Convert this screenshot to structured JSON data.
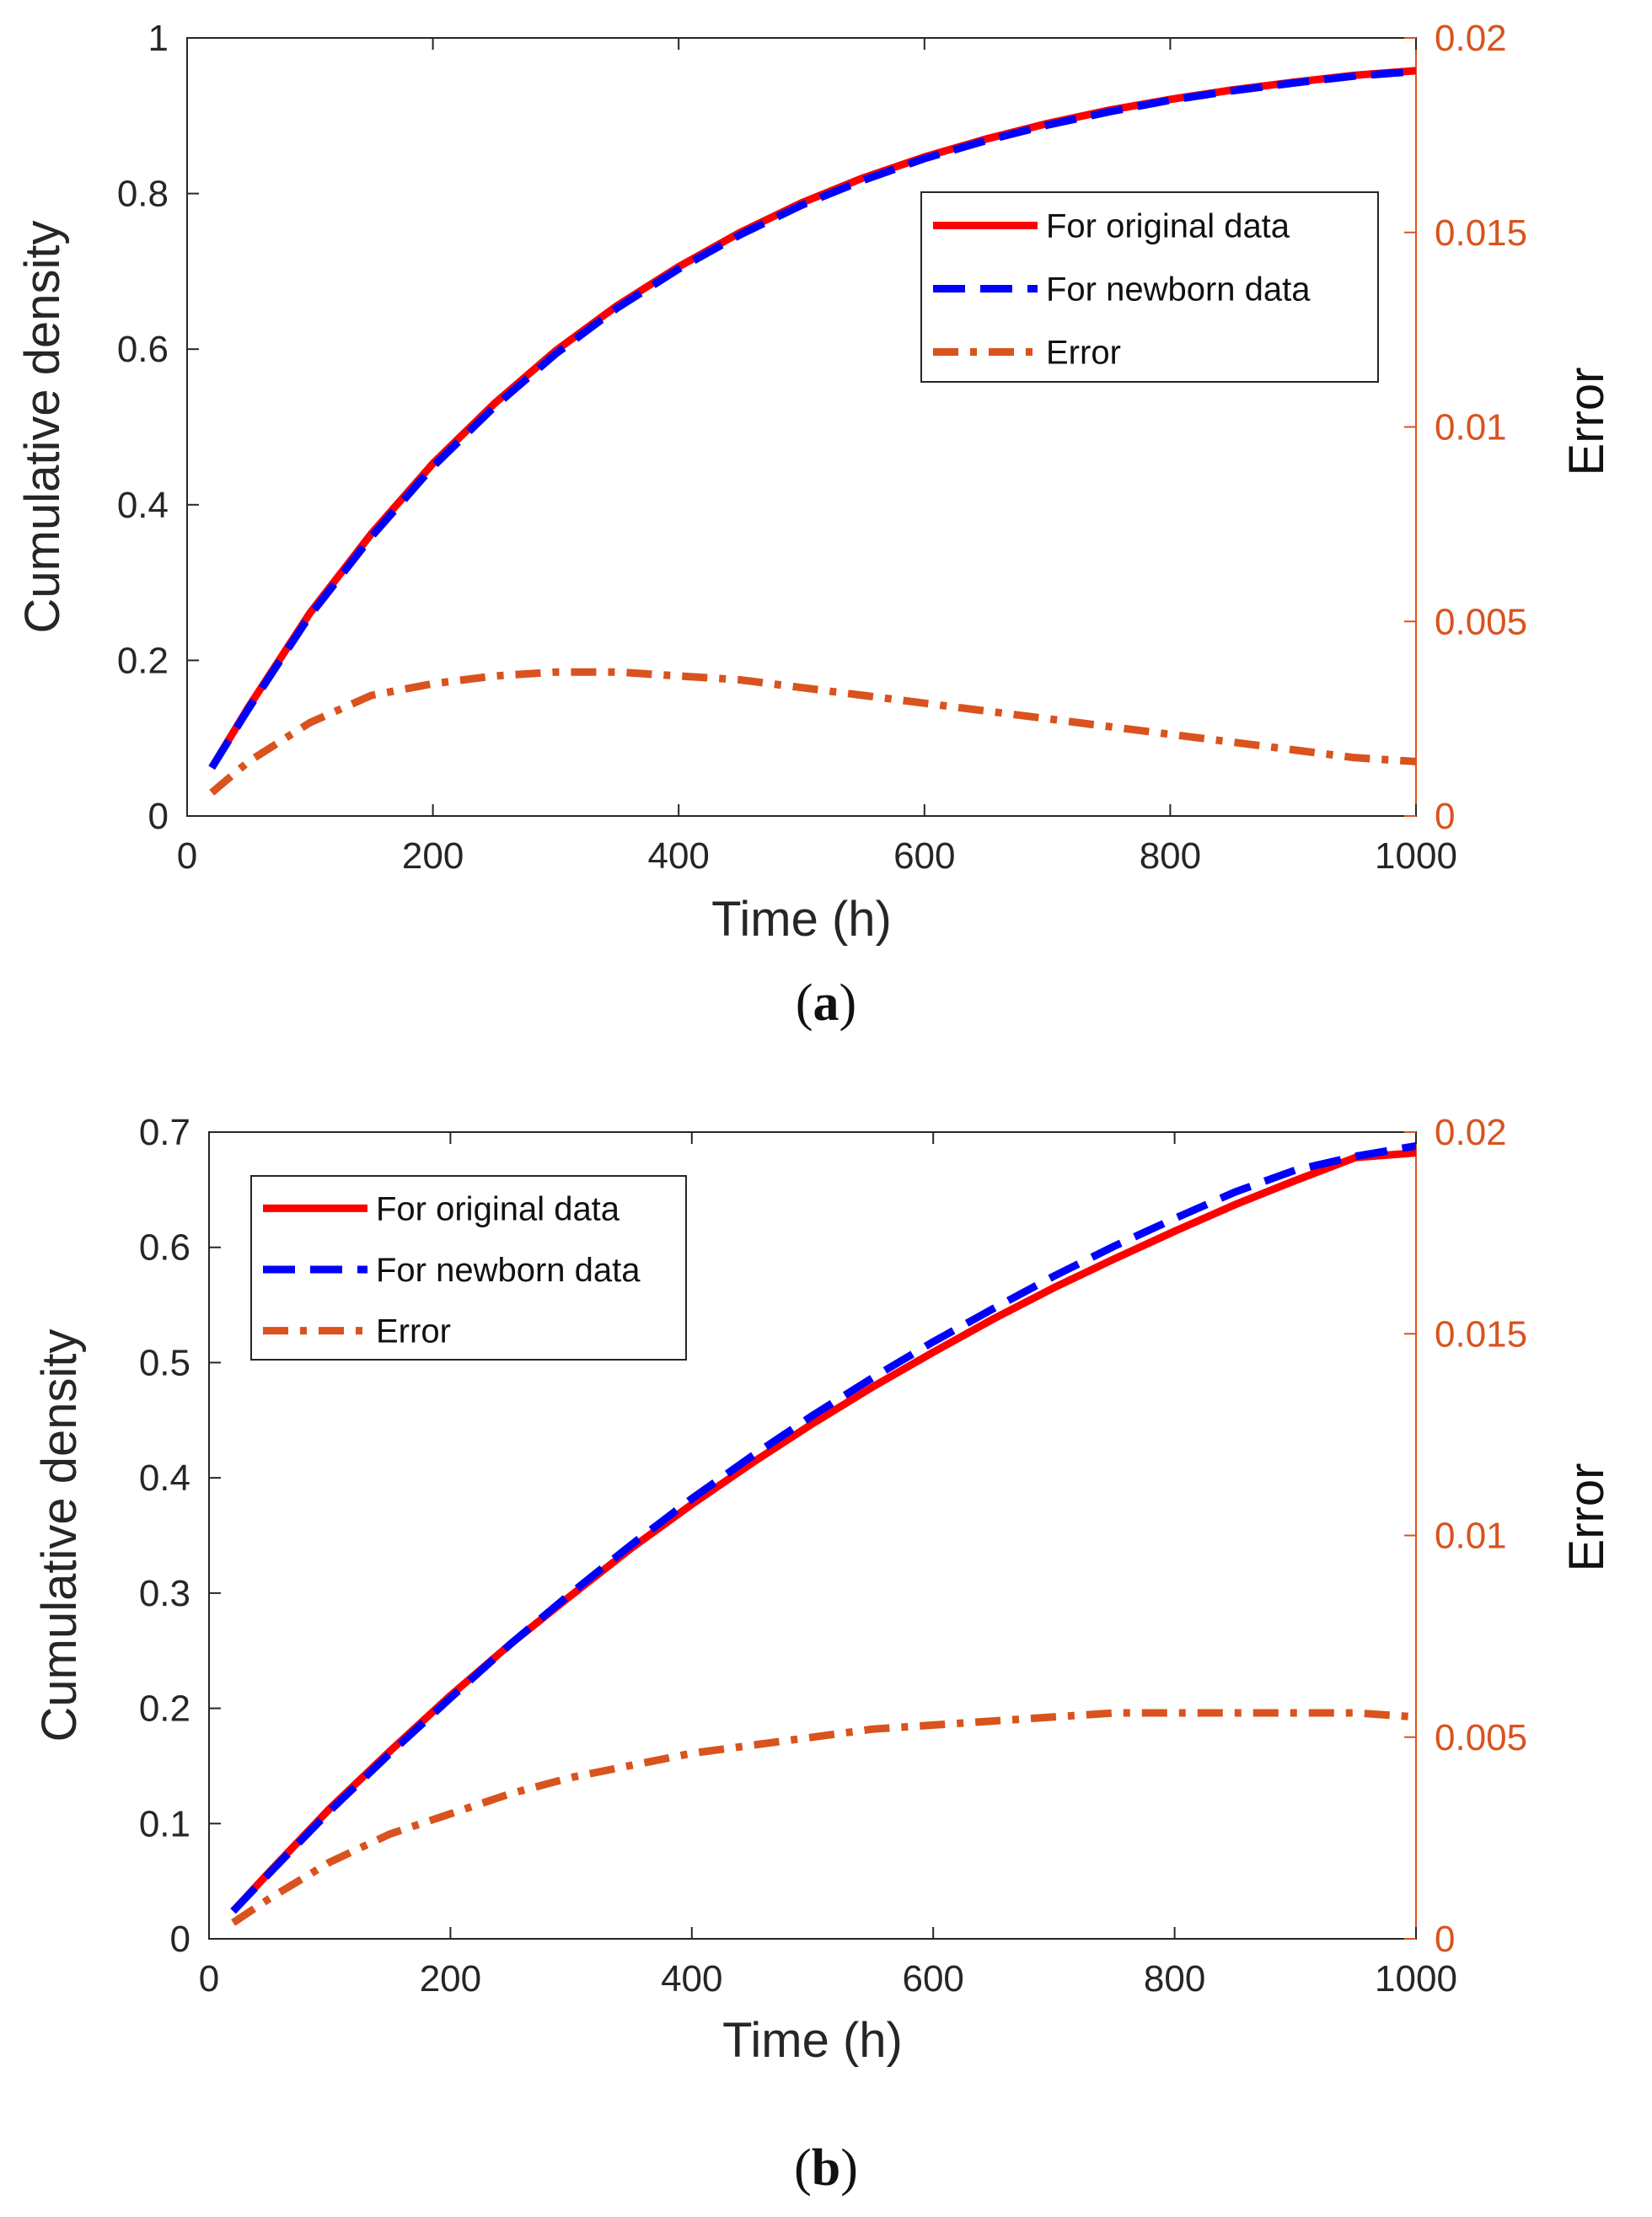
{
  "colors": {
    "original": "#ff0000",
    "newborn": "#0000ff",
    "error": "#d9531e",
    "axis_left": "#262626",
    "axis_right": "#d9531e",
    "grid_box": "#262626",
    "background": "#ffffff"
  },
  "chart_data": [
    {
      "panel": "a",
      "caption_label": "a",
      "type": "line",
      "xlabel": "Time (h)",
      "ylabel_left": "Cumulative density",
      "ylabel_right": "Error",
      "xlim": [
        0,
        1000
      ],
      "ylim_left": [
        0,
        1
      ],
      "ylim_right": [
        0,
        0.02
      ],
      "xticks": [
        "0",
        "200",
        "400",
        "600",
        "800",
        "1000"
      ],
      "xtick_values": [
        0,
        200,
        400,
        600,
        800,
        1000
      ],
      "yticks_left": [
        "0",
        "0.2",
        "0.4",
        "0.6",
        "0.8",
        "1"
      ],
      "ytick_values_left": [
        0,
        0.2,
        0.4,
        0.6,
        0.8,
        1
      ],
      "yticks_right": [
        "0",
        "0.005",
        "0.01",
        "0.015",
        "0.02"
      ],
      "ytick_values_right": [
        0,
        0.005,
        0.01,
        0.015,
        0.02
      ],
      "legend_position": "top-right",
      "series": [
        {
          "name": "For original data",
          "axis": "left",
          "style": "solid",
          "color_key": "original",
          "x": [
            20,
            50,
            100,
            150,
            200,
            250,
            300,
            350,
            400,
            450,
            500,
            550,
            600,
            650,
            700,
            750,
            800,
            850,
            900,
            950,
            1000
          ],
          "values": [
            0.062,
            0.14,
            0.261,
            0.363,
            0.453,
            0.53,
            0.598,
            0.656,
            0.706,
            0.75,
            0.788,
            0.82,
            0.847,
            0.87,
            0.89,
            0.907,
            0.921,
            0.933,
            0.943,
            0.952,
            0.958
          ]
        },
        {
          "name": "For newborn data",
          "axis": "left",
          "style": "dashed",
          "color_key": "newborn",
          "x": [
            20,
            50,
            100,
            150,
            200,
            250,
            300,
            350,
            400,
            450,
            500,
            550,
            600,
            650,
            700,
            750,
            800,
            850,
            900,
            950,
            1000
          ],
          "values": [
            0.062,
            0.138,
            0.258,
            0.359,
            0.449,
            0.526,
            0.594,
            0.653,
            0.703,
            0.747,
            0.785,
            0.817,
            0.845,
            0.868,
            0.888,
            0.905,
            0.92,
            0.932,
            0.942,
            0.951,
            0.957
          ]
        },
        {
          "name": "Error",
          "axis": "right",
          "style": "dashdot",
          "color_key": "error",
          "x": [
            20,
            50,
            100,
            150,
            200,
            250,
            300,
            350,
            400,
            450,
            500,
            550,
            600,
            650,
            700,
            750,
            800,
            850,
            900,
            950,
            1000
          ],
          "values": [
            0.0006,
            0.0014,
            0.0024,
            0.0031,
            0.0034,
            0.0036,
            0.0037,
            0.0037,
            0.0036,
            0.0035,
            0.0033,
            0.0031,
            0.0029,
            0.0027,
            0.0025,
            0.0023,
            0.0021,
            0.0019,
            0.0017,
            0.0015,
            0.0014
          ]
        }
      ]
    },
    {
      "panel": "b",
      "caption_label": "b",
      "type": "line",
      "xlabel": "Time (h)",
      "ylabel_left": "Cumulative density",
      "ylabel_right": "Error",
      "xlim": [
        0,
        1000
      ],
      "ylim_left": [
        0,
        0.7
      ],
      "ylim_right": [
        0,
        0.02
      ],
      "xticks": [
        "0",
        "200",
        "400",
        "600",
        "800",
        "1000"
      ],
      "xtick_values": [
        0,
        200,
        400,
        600,
        800,
        1000
      ],
      "yticks_left": [
        "0",
        "0.1",
        "0.2",
        "0.3",
        "0.4",
        "0.5",
        "0.6",
        "0.7"
      ],
      "ytick_values_left": [
        0,
        0.1,
        0.2,
        0.3,
        0.4,
        0.5,
        0.6,
        0.7
      ],
      "yticks_right": [
        "0",
        "0.005",
        "0.01",
        "0.015",
        "0.02"
      ],
      "ytick_values_right": [
        0,
        0.005,
        0.01,
        0.015,
        0.02
      ],
      "legend_position": "top-left",
      "series": [
        {
          "name": "For original data",
          "axis": "left",
          "style": "solid",
          "color_key": "original",
          "x": [
            20,
            50,
            100,
            150,
            200,
            250,
            300,
            350,
            400,
            450,
            500,
            550,
            600,
            650,
            700,
            750,
            800,
            850,
            900,
            950,
            1000
          ],
          "values": [
            0.024,
            0.058,
            0.113,
            0.163,
            0.211,
            0.256,
            0.298,
            0.339,
            0.377,
            0.413,
            0.447,
            0.479,
            0.509,
            0.538,
            0.565,
            0.59,
            0.614,
            0.637,
            0.658,
            0.678,
            0.682
          ]
        },
        {
          "name": "For newborn data",
          "axis": "left",
          "style": "dashed",
          "color_key": "newborn",
          "x": [
            20,
            50,
            100,
            150,
            200,
            250,
            300,
            350,
            400,
            450,
            500,
            550,
            600,
            650,
            700,
            750,
            800,
            850,
            900,
            950,
            1000
          ],
          "values": [
            0.024,
            0.057,
            0.111,
            0.161,
            0.209,
            0.256,
            0.3,
            0.342,
            0.382,
            0.419,
            0.454,
            0.487,
            0.518,
            0.547,
            0.575,
            0.601,
            0.625,
            0.648,
            0.667,
            0.679,
            0.688
          ]
        },
        {
          "name": "Error",
          "axis": "right",
          "style": "dashdot",
          "color_key": "error",
          "x": [
            20,
            50,
            100,
            150,
            200,
            250,
            300,
            350,
            400,
            450,
            500,
            550,
            600,
            650,
            700,
            750,
            800,
            850,
            900,
            950,
            1000
          ],
          "values": [
            0.0004,
            0.001,
            0.0019,
            0.0026,
            0.0031,
            0.0036,
            0.004,
            0.0043,
            0.0046,
            0.0048,
            0.005,
            0.0052,
            0.0053,
            0.0054,
            0.0055,
            0.0056,
            0.0056,
            0.0056,
            0.0056,
            0.0056,
            0.0055
          ]
        }
      ]
    }
  ]
}
